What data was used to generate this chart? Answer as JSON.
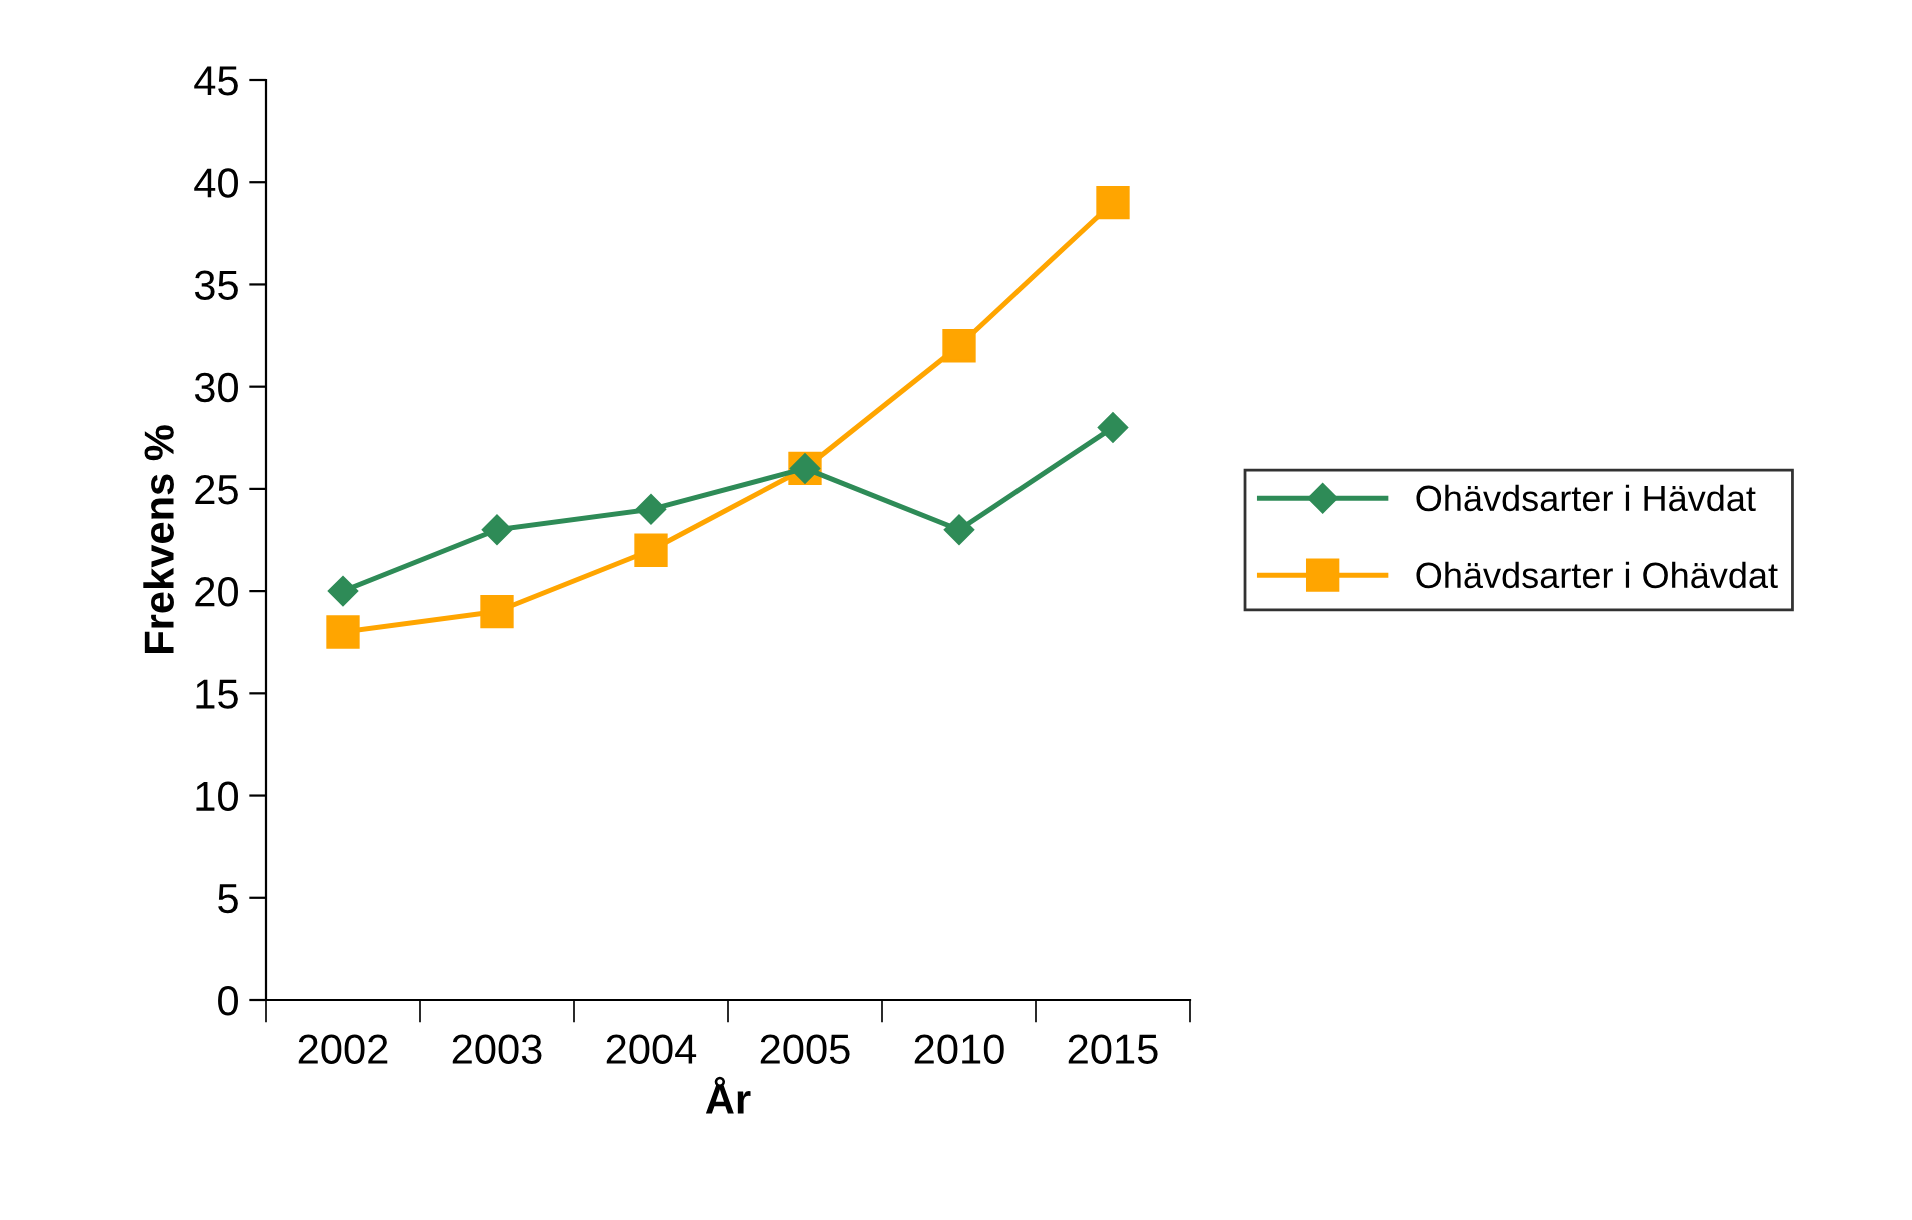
{
  "chart_data": {
    "type": "line",
    "xlabel": "År",
    "ylabel": "Frekvens %",
    "categories": [
      "2002",
      "2003",
      "2004",
      "2005",
      "2010",
      "2015"
    ],
    "series": [
      {
        "name": "Ohävdsarter i Hävdat",
        "color": "#2e8b57",
        "marker": "diamond",
        "values": [
          20,
          23,
          24,
          26,
          23,
          28
        ]
      },
      {
        "name": "Ohävdsarter i Ohävdat",
        "color": "#ffa500",
        "marker": "square",
        "values": [
          18,
          19,
          22,
          26,
          32,
          39
        ]
      }
    ],
    "ylim": [
      0,
      45
    ],
    "yticks": [
      0,
      5,
      10,
      15,
      20,
      25,
      30,
      35,
      40,
      45
    ],
    "grid": false,
    "legend": "right"
  }
}
